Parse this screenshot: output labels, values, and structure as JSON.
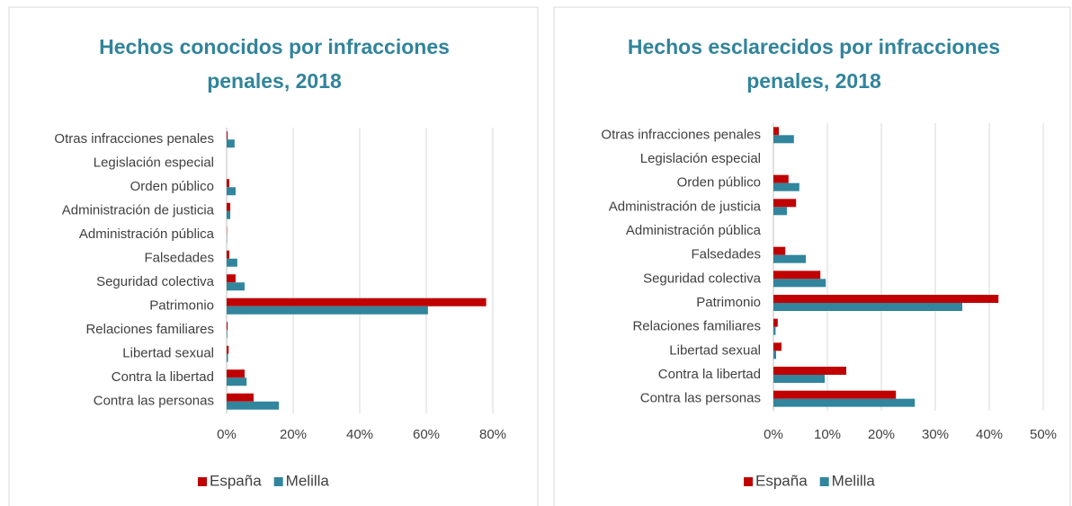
{
  "chart_data": [
    {
      "type": "bar",
      "orientation": "horizontal",
      "title": "Hechos conocidos por infracciones penales, 2018",
      "categories": [
        "Otras infracciones penales",
        "Legislación especial",
        "Orden público",
        "Administración de justicia",
        "Administración pública",
        "Falsedades",
        "Seguridad colectiva",
        "Patrimonio",
        "Relaciones familiares",
        "Libertad sexual",
        "Contra la libertad",
        "Contra las personas"
      ],
      "series": [
        {
          "name": "España",
          "color": "#c00000",
          "values": [
            0.3,
            0,
            0.8,
            1.1,
            0.1,
            0.8,
            2.7,
            78,
            0.3,
            0.6,
            5.4,
            8.1
          ]
        },
        {
          "name": "Melilla",
          "color": "#31859c",
          "values": [
            2.4,
            0,
            2.7,
            1.1,
            0.1,
            3.2,
            5.4,
            60.5,
            0.2,
            0.4,
            6,
            15.7
          ]
        }
      ],
      "xlim": [
        0,
        90
      ],
      "xticks": [
        {
          "value": 0,
          "label": "0%"
        },
        {
          "value": 20,
          "label": "20%"
        },
        {
          "value": 40,
          "label": "40%"
        },
        {
          "value": 60,
          "label": "60%"
        },
        {
          "value": 80,
          "label": "80%"
        }
      ],
      "grid": true,
      "legend": "bottom"
    },
    {
      "type": "bar",
      "orientation": "horizontal",
      "title": "Hechos esclarecidos por infracciones penales, 2018",
      "categories": [
        "Otras infracciones penales",
        "Legislación especial",
        "Orden público",
        "Administración de justicia",
        "Administración pública",
        "Falsedades",
        "Seguridad colectiva",
        "Patrimonio",
        "Relaciones familiares",
        "Libertad sexual",
        "Contra la libertad",
        "Contra las personas"
      ],
      "series": [
        {
          "name": "España",
          "color": "#c00000",
          "values": [
            1,
            0,
            2.8,
            4.2,
            0,
            2.2,
            8.7,
            41.7,
            0.8,
            1.5,
            13.5,
            22.7
          ]
        },
        {
          "name": "Melilla",
          "color": "#31859c",
          "values": [
            3.8,
            0,
            4.8,
            2.5,
            0,
            6,
            9.7,
            35,
            0.4,
            0.5,
            9.5,
            26.2
          ]
        }
      ],
      "xlim": [
        0,
        50
      ],
      "xticks": [
        {
          "value": 0,
          "label": "0%"
        },
        {
          "value": 10,
          "label": "10%"
        },
        {
          "value": 20,
          "label": "20%"
        },
        {
          "value": 30,
          "label": "30%"
        },
        {
          "value": 40,
          "label": "40%"
        },
        {
          "value": 50,
          "label": "50%"
        }
      ],
      "grid": true,
      "legend": "bottom"
    }
  ]
}
